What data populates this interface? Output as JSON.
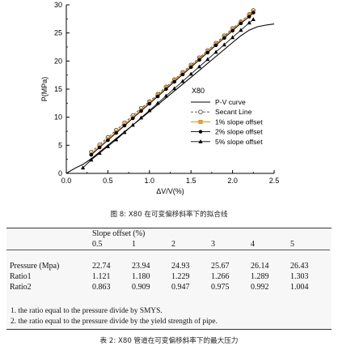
{
  "chart_data": {
    "type": "line",
    "title": "X80",
    "xlabel": "ΔV/V(%)",
    "ylabel": "P(MPa)",
    "xlim": [
      0.0,
      2.5
    ],
    "ylim": [
      0,
      30
    ],
    "xticks": [
      "0.0",
      "0.5",
      "1.0",
      "1.5",
      "2.0",
      "2.5"
    ],
    "yticks": [
      "0",
      "5",
      "10",
      "15",
      "20",
      "25",
      "30"
    ],
    "legend_position": "right-middle",
    "grid": false,
    "series": [
      {
        "name": "P-V curve",
        "style": "solid line, no markers",
        "color": "#000000",
        "x": [
          0.0,
          0.1,
          0.2,
          0.3,
          0.5,
          0.7,
          1.0,
          1.5,
          2.0,
          2.1,
          2.2,
          2.3,
          2.4,
          2.5
        ],
        "y": [
          0.0,
          0.9,
          1.6,
          2.6,
          5.0,
          7.4,
          11.0,
          17.1,
          23.3,
          24.5,
          25.5,
          26.1,
          26.4,
          26.6
        ]
      },
      {
        "name": "Secant Line",
        "style": "dashed line, open circles",
        "color": "#000000",
        "x": [
          0.3,
          0.4,
          0.5,
          0.6,
          0.7,
          0.8,
          0.9,
          1.0,
          1.1,
          1.2,
          1.3,
          1.4,
          1.5,
          1.6,
          1.7,
          1.8,
          1.9,
          2.0,
          2.1,
          2.2,
          2.25
        ],
        "y": [
          3.8,
          5.1,
          6.4,
          7.7,
          9.0,
          10.3,
          11.6,
          12.8,
          14.1,
          15.4,
          16.7,
          18.0,
          19.3,
          20.6,
          21.9,
          23.2,
          24.5,
          25.8,
          27.0,
          28.3,
          29.0
        ]
      },
      {
        "name": "1% slope offset",
        "style": "line with squares",
        "color": "#f0a030",
        "x": [
          0.3,
          0.4,
          0.5,
          0.6,
          0.7,
          0.8,
          0.9,
          1.0,
          1.1,
          1.2,
          1.3,
          1.4,
          1.5,
          1.6,
          1.7,
          1.8,
          1.9,
          2.0,
          2.1,
          2.2,
          2.25
        ],
        "y": [
          3.5,
          4.8,
          6.1,
          7.4,
          8.7,
          10.0,
          11.3,
          12.6,
          13.9,
          15.2,
          16.5,
          17.8,
          19.1,
          20.4,
          21.7,
          23.0,
          24.3,
          25.6,
          26.9,
          28.2,
          28.8
        ]
      },
      {
        "name": "2% slope offset",
        "style": "line with filled circles",
        "color": "#000000",
        "x": [
          0.3,
          0.4,
          0.5,
          0.6,
          0.7,
          0.8,
          0.9,
          1.0,
          1.1,
          1.2,
          1.3,
          1.4,
          1.5,
          1.6,
          1.7,
          1.8,
          1.9,
          2.0,
          2.1,
          2.2,
          2.25
        ],
        "y": [
          3.3,
          4.6,
          5.9,
          7.2,
          8.5,
          9.8,
          11.1,
          12.4,
          13.7,
          15.0,
          16.3,
          17.6,
          18.9,
          20.2,
          21.5,
          22.8,
          24.1,
          25.4,
          26.7,
          27.9,
          28.6
        ]
      },
      {
        "name": "5% slope offset",
        "style": "line with filled triangles",
        "color": "#000000",
        "x": [
          0.2,
          0.3,
          0.4,
          0.5,
          0.6,
          0.7,
          0.8,
          0.9,
          1.0,
          1.1,
          1.2,
          1.3,
          1.4,
          1.5,
          1.6,
          1.7,
          1.8,
          1.9,
          2.0,
          2.1,
          2.2,
          2.25
        ],
        "y": [
          1.0,
          2.4,
          3.6,
          4.8,
          6.0,
          7.3,
          8.6,
          9.9,
          11.2,
          12.5,
          13.8,
          15.1,
          16.4,
          17.7,
          19.0,
          20.3,
          21.6,
          22.9,
          24.2,
          25.5,
          26.8,
          27.4
        ]
      }
    ]
  },
  "figure": {
    "caption": "图 8:   X80 在可变偏移斜率下的拟合线"
  },
  "table": {
    "group_header": "Slope offset (%)",
    "columns": [
      "0.5",
      "1",
      "2",
      "3",
      "4",
      "5"
    ],
    "rows": [
      {
        "label": "Pressure (Mpa)",
        "values": [
          "22.74",
          "23.94",
          "24.93",
          "25.67",
          "26.14",
          "26.43"
        ]
      },
      {
        "label": "Ratio1",
        "values": [
          "1.121",
          "1.180",
          "1.229",
          "1.266",
          "1.289",
          "1.303"
        ]
      },
      {
        "label": "Ratio2",
        "values": [
          "0.863",
          "0.909",
          "0.947",
          "0.975",
          "0.992",
          "1.004"
        ]
      }
    ],
    "notes": [
      "1. the ratio equal to the pressure divide by SMYS.",
      "2. the ratio equal to the pressure divide by the yield strength of pipe."
    ],
    "caption": "表 2:  X80 管道在可变偏移斜率下的最大压力"
  }
}
